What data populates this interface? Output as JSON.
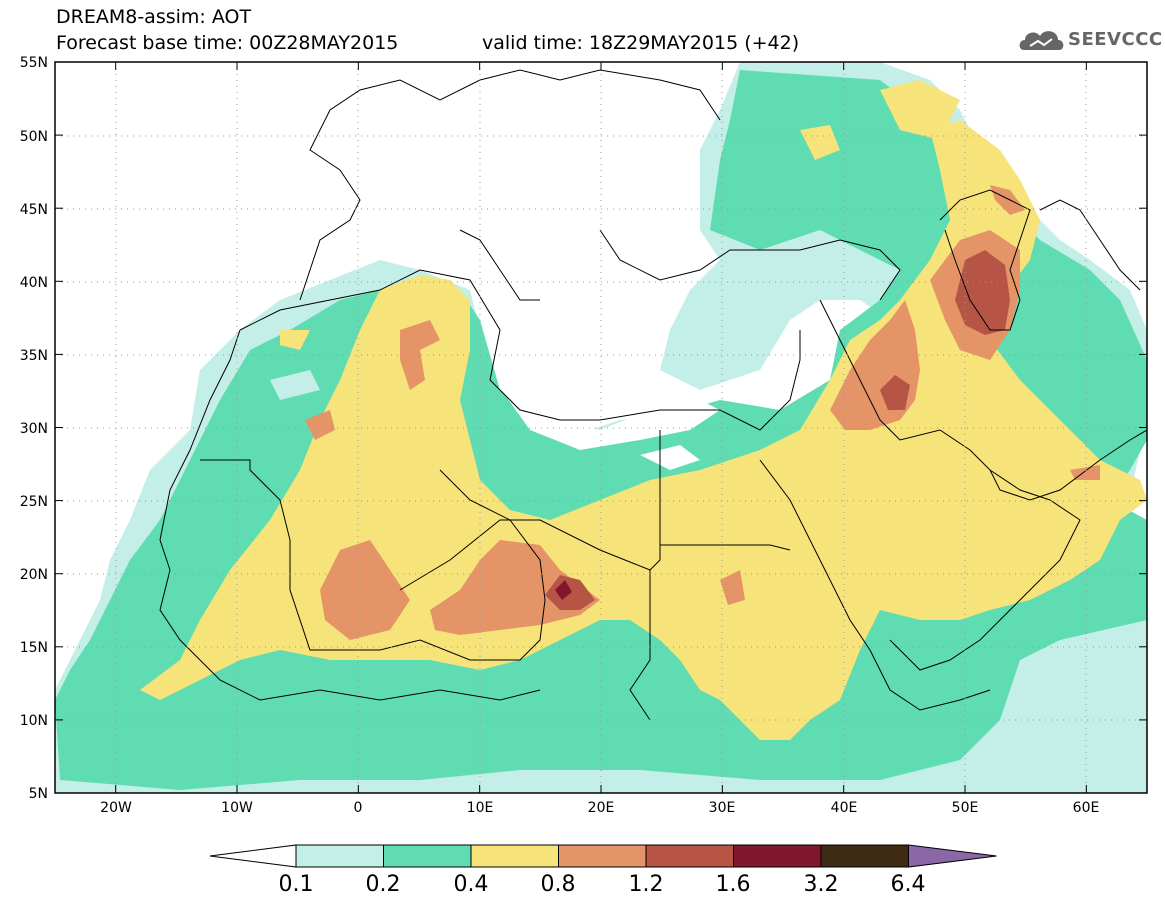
{
  "header": {
    "line1": "DREAM8-assim: AOT",
    "base_time": "Forecast base time: 00Z28MAY2015",
    "valid_time": "valid time: 18Z29MAY2015 (+42)"
  },
  "logo": {
    "text": "SEEVCCC",
    "icon": "cloud-icon"
  },
  "map": {
    "lon_range": [
      -25,
      65
    ],
    "lat_range": [
      5,
      55
    ],
    "lat_ticks": [
      "5N",
      "10N",
      "15N",
      "20N",
      "25N",
      "30N",
      "35N",
      "40N",
      "45N",
      "50N",
      "55N"
    ],
    "lon_ticks": [
      "20W",
      "10W",
      "0",
      "10E",
      "20E",
      "30E",
      "40E",
      "50E",
      "60E"
    ]
  },
  "colorbar": {
    "levels": [
      "0.1",
      "0.2",
      "0.4",
      "0.8",
      "1.2",
      "1.6",
      "3.2",
      "6.4"
    ],
    "colors": [
      "#ffffff",
      "#c4eee8",
      "#5fdcb2",
      "#f6e37a",
      "#e59467",
      "#b65545",
      "#81162f",
      "#3f2a14",
      "#8c67a8"
    ]
  }
}
